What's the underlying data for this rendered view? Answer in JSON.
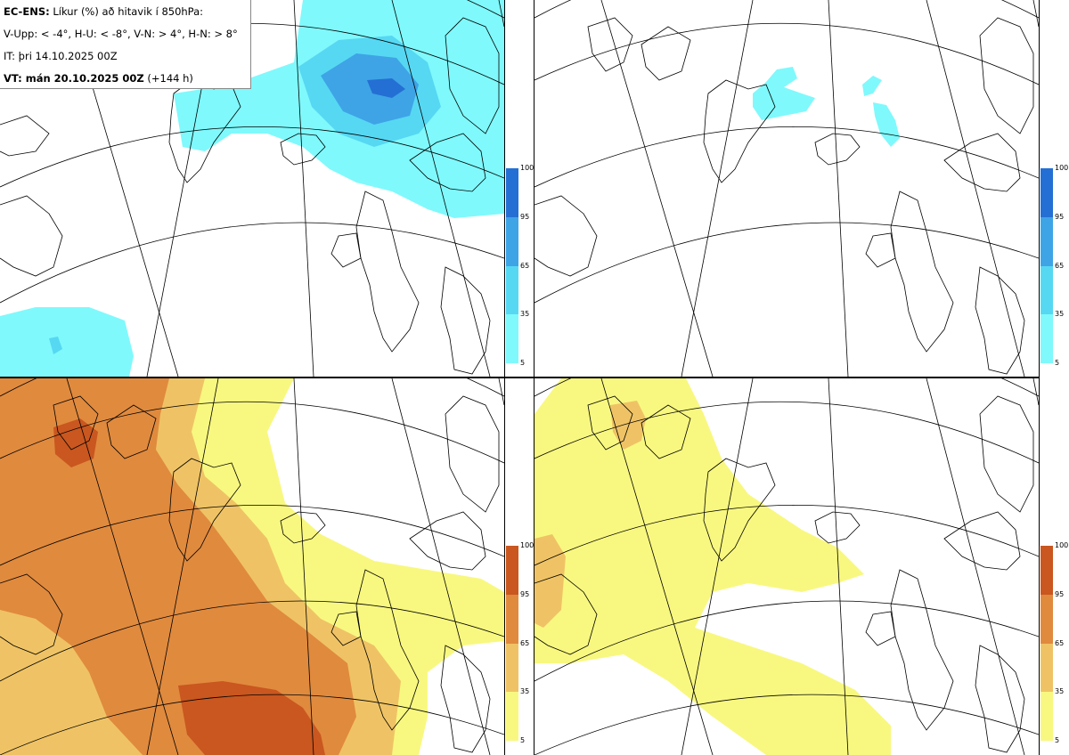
{
  "info": {
    "product": "EC-ENS:",
    "title_rest": " Líkur (%) að hitavik í 850hPa:",
    "categories_line": "V-Upp: < -4°, H-U: < -8°, V-N: > 4°, H-N: > 8°",
    "issue_time": "IT: þri 14.10.2025 00Z",
    "valid_label": "VT: mán 20.10.2025 00Z",
    "valid_offset": " (+144 h)"
  },
  "panels": [
    {
      "id": "cold-4",
      "scheme": "blue"
    },
    {
      "id": "cold-8",
      "scheme": "blue"
    },
    {
      "id": "warm-4",
      "scheme": "orange"
    },
    {
      "id": "warm-8",
      "scheme": "orange"
    }
  ],
  "legend": {
    "ticks": [
      "5",
      "35",
      "65",
      "95",
      "100"
    ],
    "blue_colors": [
      "#7ff9fc",
      "#56d8f3",
      "#3ea4e6",
      "#246fd3"
    ],
    "orange_colors": [
      "#f8f880",
      "#efc365",
      "#e08a3e",
      "#c9571f"
    ]
  },
  "colors": {
    "coast": "#000000",
    "grid": "#000000"
  }
}
